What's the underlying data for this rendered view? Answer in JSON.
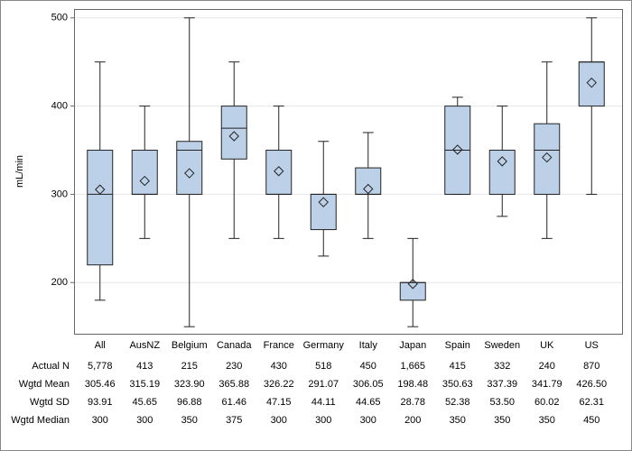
{
  "chart_data": {
    "type": "box",
    "y_label": "mL/min",
    "categories": [
      "All",
      "AusNZ",
      "Belgium",
      "Canada",
      "France",
      "Germany",
      "Italy",
      "Japan",
      "Spain",
      "Sweden",
      "UK",
      "US"
    ],
    "ylim": [
      142,
      510
    ],
    "yticks": [
      200,
      300,
      400,
      500
    ],
    "grid": true,
    "box_color": "#bcd0e8",
    "boxes": [
      {
        "whislo": 180,
        "q1": 220,
        "med": 300,
        "q3": 350,
        "whishi": 450,
        "mean": 305.46
      },
      {
        "whislo": 250,
        "q1": 300,
        "med": 300,
        "q3": 350,
        "whishi": 400,
        "mean": 315.19
      },
      {
        "whislo": 150,
        "q1": 300,
        "med": 350,
        "q3": 360,
        "whishi": 500,
        "mean": 323.9
      },
      {
        "whislo": 250,
        "q1": 340,
        "med": 375,
        "q3": 400,
        "whishi": 450,
        "mean": 365.88
      },
      {
        "whislo": 250,
        "q1": 300,
        "med": 300,
        "q3": 350,
        "whishi": 400,
        "mean": 326.22
      },
      {
        "whislo": 230,
        "q1": 260,
        "med": 300,
        "q3": 300,
        "whishi": 360,
        "mean": 291.07
      },
      {
        "whislo": 250,
        "q1": 300,
        "med": 300,
        "q3": 330,
        "whishi": 370,
        "mean": 306.05
      },
      {
        "whislo": 150,
        "q1": 180,
        "med": 200,
        "q3": 200,
        "whishi": 250,
        "mean": 198.48
      },
      {
        "whislo": 300,
        "q1": 300,
        "med": 350,
        "q3": 400,
        "whishi": 410,
        "mean": 350.63
      },
      {
        "whislo": 275,
        "q1": 300,
        "med": 350,
        "q3": 350,
        "whishi": 400,
        "mean": 337.39
      },
      {
        "whislo": 250,
        "q1": 300,
        "med": 350,
        "q3": 380,
        "whishi": 450,
        "mean": 341.79
      },
      {
        "whislo": 300,
        "q1": 400,
        "med": 450,
        "q3": 450,
        "whishi": 500,
        "mean": 426.5
      }
    ],
    "table": [
      {
        "label": "Actual N",
        "values": [
          "5,778",
          "413",
          "215",
          "230",
          "430",
          "518",
          "450",
          "1,665",
          "415",
          "332",
          "240",
          "870"
        ]
      },
      {
        "label": "Wgtd Mean",
        "values": [
          "305.46",
          "315.19",
          "323.90",
          "365.88",
          "326.22",
          "291.07",
          "306.05",
          "198.48",
          "350.63",
          "337.39",
          "341.79",
          "426.50"
        ]
      },
      {
        "label": "Wgtd SD",
        "values": [
          "93.91",
          "45.65",
          "96.88",
          "61.46",
          "47.15",
          "44.11",
          "44.65",
          "28.78",
          "52.38",
          "53.50",
          "60.02",
          "62.31"
        ]
      },
      {
        "label": "Wgtd Median",
        "values": [
          "300",
          "300",
          "350",
          "375",
          "300",
          "300",
          "300",
          "200",
          "350",
          "350",
          "350",
          "450"
        ]
      }
    ]
  }
}
